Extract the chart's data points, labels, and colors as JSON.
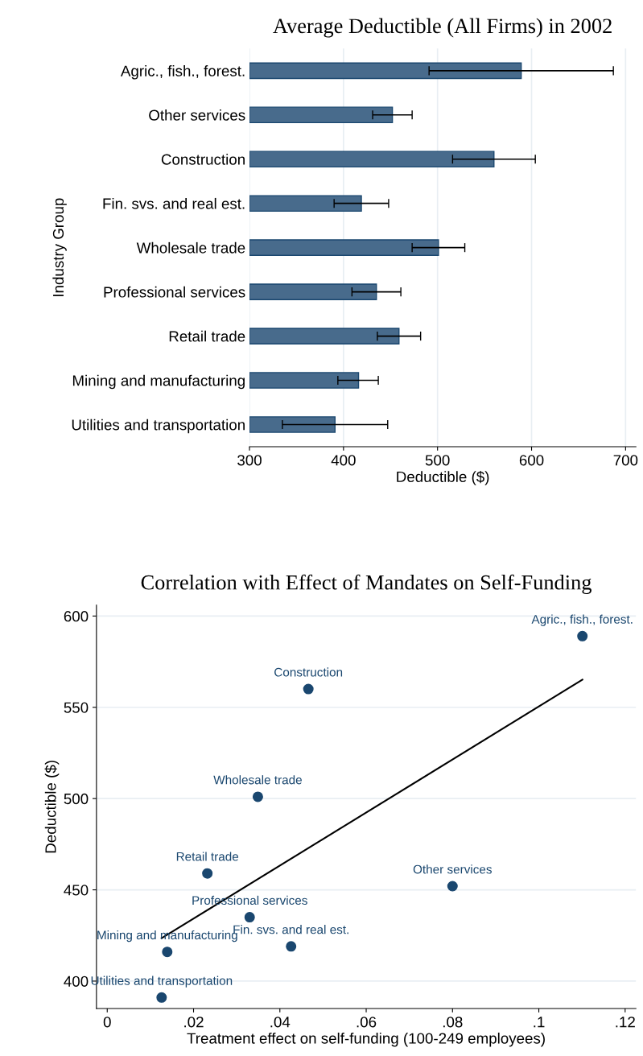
{
  "chart_data": [
    {
      "type": "bar",
      "orientation": "horizontal",
      "title": "Average Deductible (All Firms) in 2002",
      "xlabel": "Deductible ($)",
      "ylabel": "Industry Group",
      "categories": [
        "Agric., fish., forest.",
        "Other services",
        "Construction",
        "Fin. svs. and real est.",
        "Wholesale trade",
        "Professional services",
        "Retail trade",
        "Mining and manufacturing",
        "Utilities and transportation"
      ],
      "base": [
        300,
        300,
        300,
        300,
        300,
        300,
        300,
        300,
        300
      ],
      "values": [
        289,
        152,
        260,
        119,
        201,
        135,
        159,
        116,
        91
      ],
      "errors": [
        [
          491,
          687
        ],
        [
          431,
          473
        ],
        [
          516,
          604
        ],
        [
          390,
          448
        ],
        [
          473,
          529
        ],
        [
          409,
          461
        ],
        [
          436,
          482
        ],
        [
          394,
          437
        ],
        [
          335,
          447
        ]
      ],
      "color": "#486b8c",
      "xlim": [
        300,
        711
      ],
      "xticks": [
        300,
        400,
        500,
        600,
        700
      ],
      "grid": "x"
    },
    {
      "type": "scatter",
      "title": "Correlation with Effect of Mandates on Self-Funding",
      "xlabel": "Treatment effect on self-funding (100-249 employees)",
      "ylabel": "Deductible ($)",
      "series": [
        {
          "type": "scatter",
          "color": "#1a476f",
          "marker": "circle",
          "x": [
            0.1101,
            0.08,
            0.0466,
            0.0426,
            0.0349,
            0.033,
            0.0232,
            0.0139,
            0.0126
          ],
          "values": [
            589,
            452,
            560,
            419,
            501,
            435,
            459,
            416,
            391
          ]
        },
        {
          "type": "line",
          "color": "#000000",
          "x": [
            0.0126,
            0.1101
          ],
          "values": [
            423.5,
            565.1
          ]
        }
      ],
      "annotations": [
        {
          "text": "Agric., fish., forest.",
          "x": 0.1101,
          "y": 589
        },
        {
          "text": "Other services",
          "x": 0.08,
          "y": 452
        },
        {
          "text": "Construction",
          "x": 0.0466,
          "y": 560
        },
        {
          "text": "Fin. svs. and real est.",
          "x": 0.0426,
          "y": 419
        },
        {
          "text": "Wholesale trade",
          "x": 0.0349,
          "y": 501
        },
        {
          "text": "Professional services",
          "x": 0.033,
          "y": 435
        },
        {
          "text": "Retail trade",
          "x": 0.0232,
          "y": 459
        },
        {
          "text": "Mining and manufacturing",
          "x": 0.0139,
          "y": 416
        },
        {
          "text": "Utilities and transportation",
          "x": 0.0126,
          "y": 391
        }
      ],
      "xlim": [
        -0.0025,
        0.1225
      ],
      "xticks": [
        {
          "value": 0,
          "label": "0"
        },
        {
          "value": 0.02,
          "label": ".02"
        },
        {
          "value": 0.04,
          "label": ".04"
        },
        {
          "value": 0.06,
          "label": ".06"
        },
        {
          "value": 0.08,
          "label": ".08"
        },
        {
          "value": 0.1,
          "label": ".1"
        },
        {
          "value": 0.12,
          "label": ".12"
        }
      ],
      "ylim": [
        385,
        606
      ],
      "yticks": [
        400,
        450,
        500,
        550,
        600
      ],
      "grid": "y"
    }
  ]
}
